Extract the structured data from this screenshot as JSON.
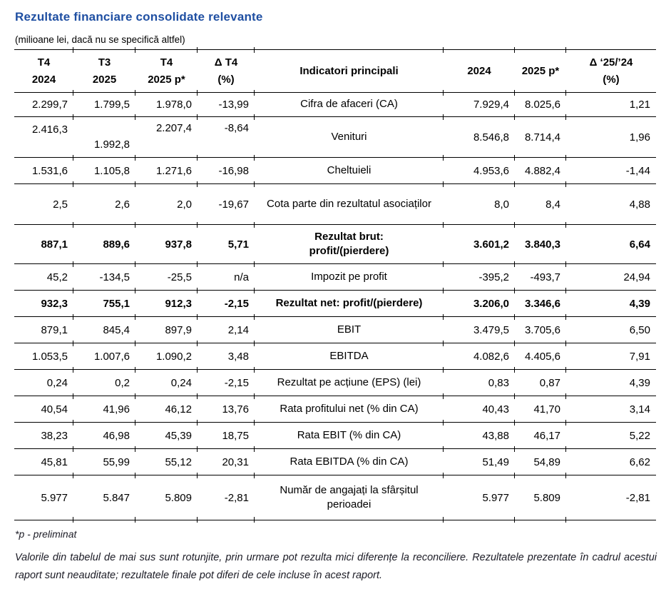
{
  "page": {
    "title": "Rezultate financiare consolidate relevante",
    "subtitle": "(milioane lei, dacă nu se specifică altfel)",
    "footnote": "*p - preliminat",
    "disclaimer": "Valorile din tabelul de mai sus sunt rotunjite, prin urmare pot rezulta mici diferențe la reconciliere. Rezultatele prezentate în cadrul acestui raport sunt neauditate; rezultatele finale pot diferi de cele incluse în acest raport.",
    "accent_color": "#1F4FA2"
  },
  "table": {
    "headers": [
      "T4\n2024",
      "T3\n2025",
      "T4\n2025 p*",
      "Δ T4\n(%)",
      "Indicatori principali",
      "2024",
      "2025 p*",
      "Δ ‘25/’24\n(%)"
    ],
    "rows": [
      {
        "c": [
          "2.299,7",
          "1.799,5",
          "1.978,0",
          "-13,99",
          "Cifra de afaceri (CA)",
          "7.929,4",
          "8.025,6",
          "1,21"
        ]
      },
      {
        "c": [
          "2.416,3",
          "1.992,8",
          "2.207,4",
          "-8,64",
          "Venituri",
          "8.546,8",
          "8.714,4",
          "1,96"
        ]
      },
      {
        "c": [
          "1.531,6",
          "1.105,8",
          "1.271,6",
          "-16,98",
          "Cheltuieli",
          "4.953,6",
          "4.882,4",
          "-1,44"
        ]
      },
      {
        "c": [
          "2,5",
          "2,6",
          "2,0",
          "-19,67",
          "Cota parte din rezultatul asociaților",
          "8,0",
          "8,4",
          "4,88"
        ]
      },
      {
        "c": [
          "887,1",
          "889,6",
          "937,8",
          "5,71",
          "Rezultat brut:\nprofit/(pierdere)",
          "3.601,2",
          "3.840,3",
          "6,64"
        ]
      },
      {
        "c": [
          "45,2",
          "-134,5",
          "-25,5",
          "n/a",
          "Impozit pe profit",
          "-395,2",
          "-493,7",
          "24,94"
        ]
      },
      {
        "c": [
          "932,3",
          "755,1",
          "912,3",
          "-2,15",
          "Rezultat net: profit/(pierdere)",
          "3.206,0",
          "3.346,6",
          "4,39"
        ]
      },
      {
        "c": [
          "879,1",
          "845,4",
          "897,9",
          "2,14",
          "EBIT",
          "3.479,5",
          "3.705,6",
          "6,50"
        ]
      },
      {
        "c": [
          "1.053,5",
          "1.007,6",
          "1.090,2",
          "3,48",
          "EBITDA",
          "4.082,6",
          "4.405,6",
          "7,91"
        ]
      },
      {
        "c": [
          "0,24",
          "0,2",
          "0,24",
          "-2,15",
          "Rezultat pe acțiune (EPS) (lei)",
          "0,83",
          "0,87",
          "4,39"
        ]
      },
      {
        "c": [
          "40,54",
          "41,96",
          "46,12",
          "13,76",
          "Rata profitului net (% din CA)",
          "40,43",
          "41,70",
          "3,14"
        ]
      },
      {
        "c": [
          "38,23",
          "46,98",
          "45,39",
          "18,75",
          "Rata EBIT (% din CA)",
          "43,88",
          "46,17",
          "5,22"
        ]
      },
      {
        "c": [
          "45,81",
          "55,99",
          "55,12",
          "20,31",
          "Rata EBITDA (% din CA)",
          "51,49",
          "54,89",
          "6,62"
        ]
      },
      {
        "c": [
          "5.977",
          "5.847",
          "5.809",
          "-2,81",
          "Număr de angajați la sfârșitul perioadei",
          "5.977",
          "5.809",
          "-2,81"
        ]
      }
    ]
  }
}
